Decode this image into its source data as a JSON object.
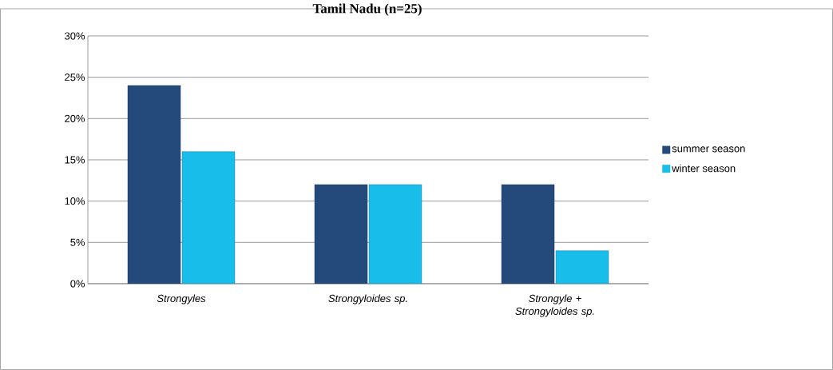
{
  "chart_data": {
    "type": "bar",
    "title": "Tamil Nadu (n=25)",
    "categories": [
      "Strongyles",
      "Strongyloides sp.",
      "Strongyle + Strongyloides sp."
    ],
    "series": [
      {
        "name": "summer season",
        "color": "#244a7c",
        "values": [
          24,
          12,
          12
        ]
      },
      {
        "name": "winter season",
        "color": "#18bde9",
        "values": [
          16,
          12,
          4
        ]
      }
    ],
    "ylim": [
      0,
      30
    ],
    "yticks": [
      {
        "value": 0,
        "label": "0%"
      },
      {
        "value": 5,
        "label": "5%"
      },
      {
        "value": 10,
        "label": "10%"
      },
      {
        "value": 15,
        "label": "15%"
      },
      {
        "value": 20,
        "label": "20%"
      },
      {
        "value": 25,
        "label": "25%"
      },
      {
        "value": 30,
        "label": "30%"
      }
    ],
    "grid": "y",
    "legend": "right"
  }
}
